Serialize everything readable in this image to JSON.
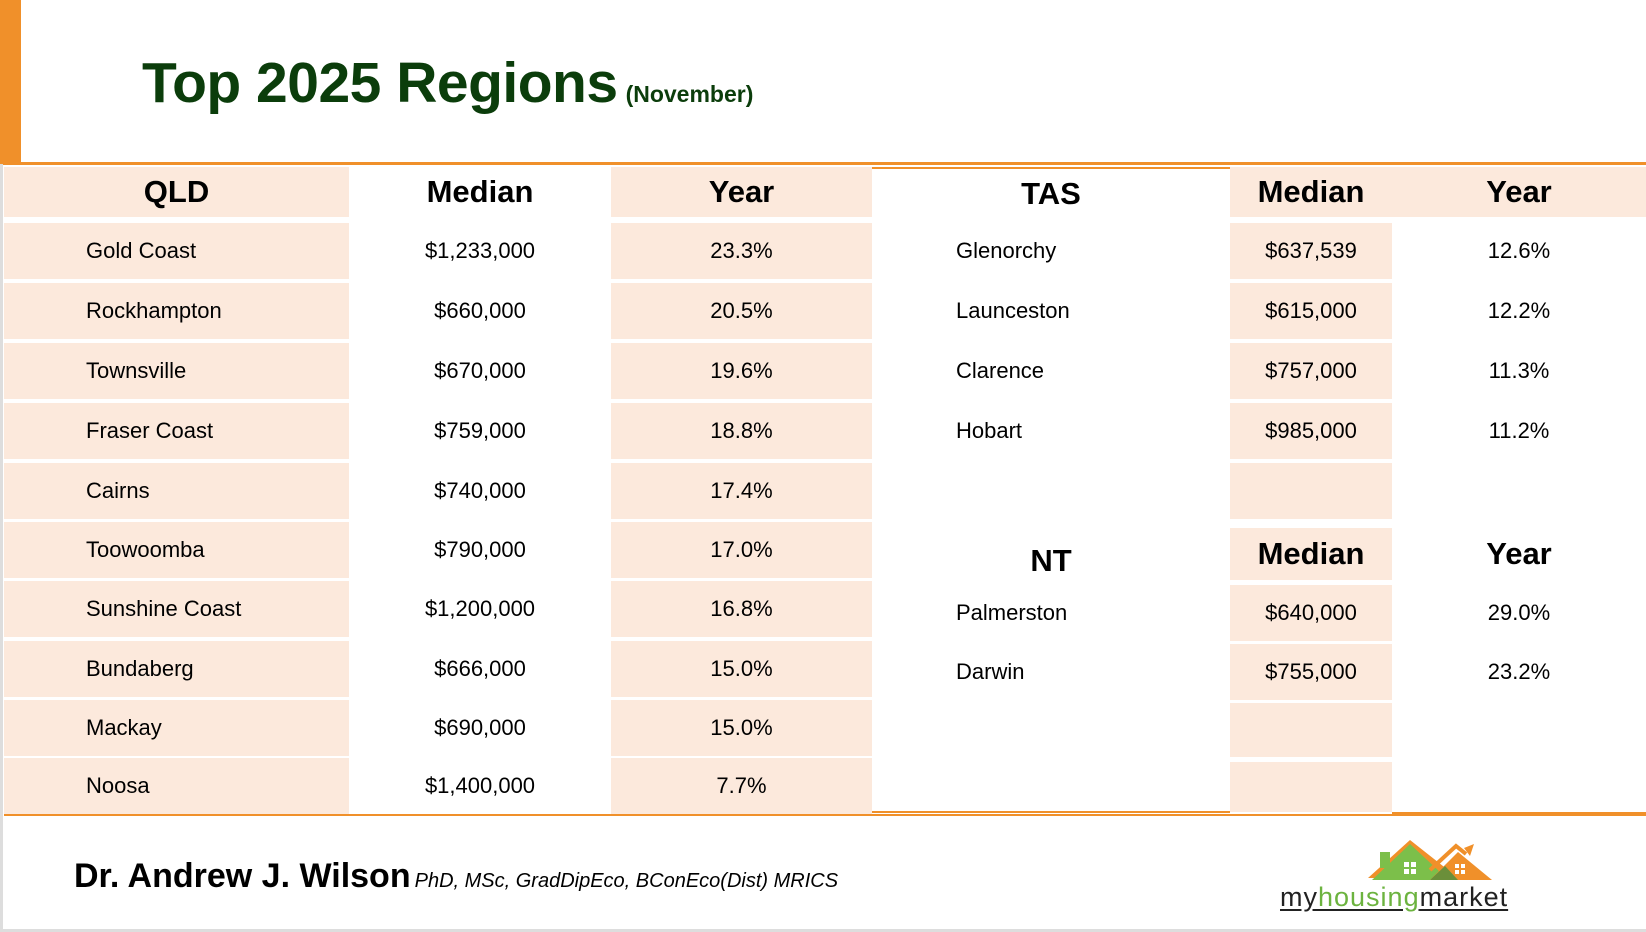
{
  "header": {
    "title": "Top 2025 Regions",
    "subtitle": "(November)"
  },
  "qld": {
    "heading": "QLD",
    "median_label": "Median",
    "year_label": "Year",
    "rows": [
      {
        "region": "Gold Coast",
        "median": "$1,233,000",
        "year": "23.3%"
      },
      {
        "region": "Rockhampton",
        "median": "$660,000",
        "year": "20.5%"
      },
      {
        "region": "Townsville",
        "median": "$670,000",
        "year": "19.6%"
      },
      {
        "region": "Fraser Coast",
        "median": "$759,000",
        "year": "18.8%"
      },
      {
        "region": "Cairns",
        "median": "$740,000",
        "year": "17.4%"
      },
      {
        "region": "Toowoomba",
        "median": "$790,000",
        "year": "17.0%"
      },
      {
        "region": "Sunshine Coast",
        "median": "$1,200,000",
        "year": "16.8%"
      },
      {
        "region": "Bundaberg",
        "median": "$666,000",
        "year": "15.0%"
      },
      {
        "region": "Mackay",
        "median": "$690,000",
        "year": "15.0%"
      },
      {
        "region": "Noosa",
        "median": "$1,400,000",
        "year": "7.7%"
      }
    ]
  },
  "tas": {
    "heading": "TAS",
    "median_label": "Median",
    "year_label": "Year",
    "rows": [
      {
        "region": "Glenorchy",
        "median": "$637,539",
        "year": "12.6%"
      },
      {
        "region": "Launceston",
        "median": "$615,000",
        "year": "12.2%"
      },
      {
        "region": "Clarence",
        "median": "$757,000",
        "year": "11.3%"
      },
      {
        "region": "Hobart",
        "median": "$985,000",
        "year": "11.2%"
      }
    ]
  },
  "nt": {
    "heading": "NT",
    "median_label": "Median",
    "year_label": "Year",
    "rows": [
      {
        "region": "Palmerston",
        "median": "$640,000",
        "year": "29.0%"
      },
      {
        "region": "Darwin",
        "median": "$755,000",
        "year": "23.2%"
      }
    ]
  },
  "footer": {
    "author": "Dr. Andrew J. Wilson",
    "credentials": "PhD, MSc, GradDipEco, BConEco(Dist) MRICS",
    "logo": {
      "part1": "my",
      "part2": "housing",
      "part3": "market",
      "icon": "house-roof-arrow-icon"
    }
  },
  "colors": {
    "accent_orange": "#f0902a",
    "title_green": "#0b3d0b",
    "cell_peach": "#fce9dc",
    "logo_green": "#6cb33f"
  }
}
